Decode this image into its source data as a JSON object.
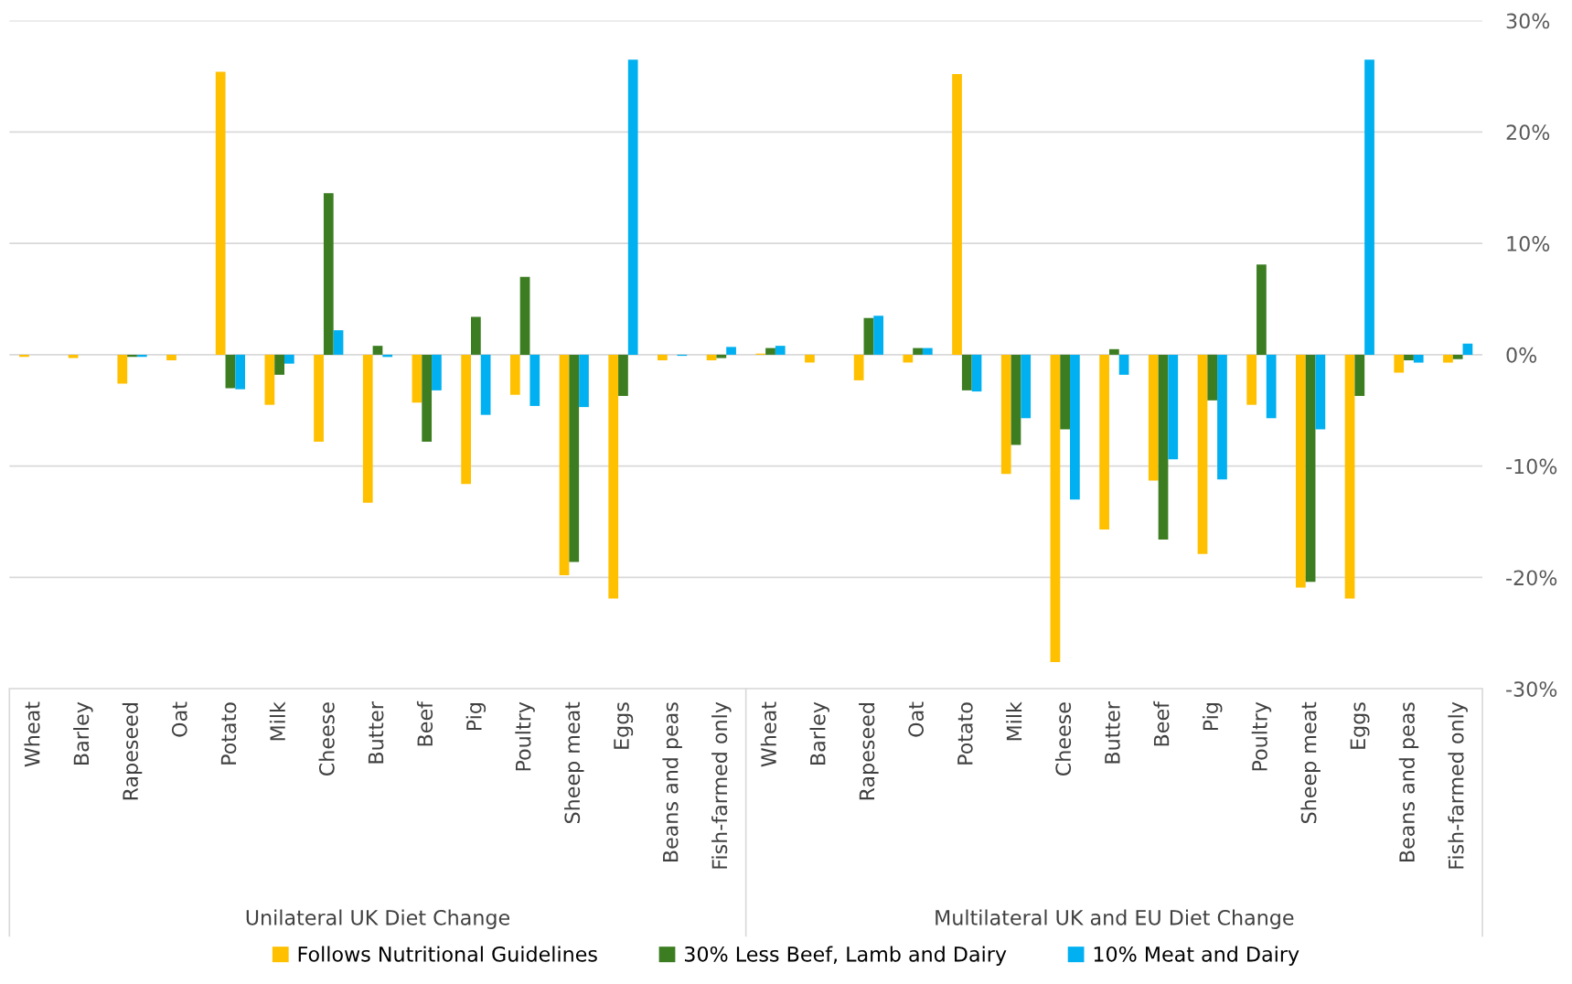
{
  "chart_data": {
    "type": "bar",
    "categories": [
      "Wheat",
      "Barley",
      "Rapeseed",
      "Oat",
      "Potato",
      "Milk",
      "Cheese",
      "Butter",
      "Beef",
      "Pig",
      "Poultry",
      "Sheep meat",
      "Eggs",
      "Beans and peas",
      "Fish-farmed only",
      "Wheat",
      "Barley",
      "Rapeseed",
      "Oat",
      "Potato",
      "Milk",
      "Cheese",
      "Butter",
      "Beef",
      "Pig",
      "Poultry",
      "Sheep meat",
      "Eggs",
      "Beans and peas",
      "Fish-farmed only"
    ],
    "series": [
      {
        "name": "Follows Nutritional Guidelines",
        "color": "#ffc000",
        "values": [
          -0.2,
          -0.3,
          -2.6,
          -0.5,
          25.4,
          -4.5,
          -7.8,
          -13.3,
          -4.3,
          -11.6,
          -3.6,
          -19.8,
          -21.9,
          -0.5,
          -0.5,
          0.1,
          -0.7,
          -2.3,
          -0.7,
          25.2,
          -10.7,
          -27.6,
          -15.7,
          -11.3,
          -17.9,
          -4.5,
          -20.9,
          -21.9,
          -1.6,
          -0.7
        ]
      },
      {
        "name": "30% Less Beef, Lamb and Dairy",
        "color": "#3c7d22",
        "values": [
          0,
          0,
          -0.2,
          0,
          -3.0,
          -1.8,
          14.5,
          0.8,
          -7.8,
          3.4,
          7.0,
          -18.6,
          -3.7,
          0,
          -0.3,
          0.6,
          0,
          3.3,
          0.6,
          -3.2,
          -8.1,
          -6.7,
          0.5,
          -16.6,
          -4.1,
          8.1,
          -20.4,
          -3.7,
          -0.5,
          -0.4
        ]
      },
      {
        "name": "10% Meat and Dairy",
        "color": "#00b0f0",
        "values": [
          0,
          0,
          -0.2,
          0,
          -3.1,
          -0.8,
          2.2,
          -0.2,
          -3.2,
          -5.4,
          -4.6,
          -4.7,
          26.5,
          -0.1,
          0.7,
          0.8,
          0,
          3.5,
          0.6,
          -3.3,
          -5.7,
          -13.0,
          -1.8,
          -9.4,
          -11.2,
          -5.7,
          -6.7,
          26.5,
          -0.7,
          1.0
        ]
      }
    ],
    "ylim": [
      -30,
      30
    ],
    "yticks": [
      {
        "value": -30,
        "label": "-30%"
      },
      {
        "value": -20,
        "label": "-20%"
      },
      {
        "value": -10,
        "label": "-10%"
      },
      {
        "value": 0,
        "label": "0%"
      },
      {
        "value": 10,
        "label": "10%"
      },
      {
        "value": 20,
        "label": "20%"
      },
      {
        "value": 30,
        "label": "30%"
      }
    ],
    "annotations": [
      "Unilateral UK Diet Change",
      "Multilateral UK and EU Diet Change"
    ],
    "grid": "y",
    "legend": "bottom"
  }
}
